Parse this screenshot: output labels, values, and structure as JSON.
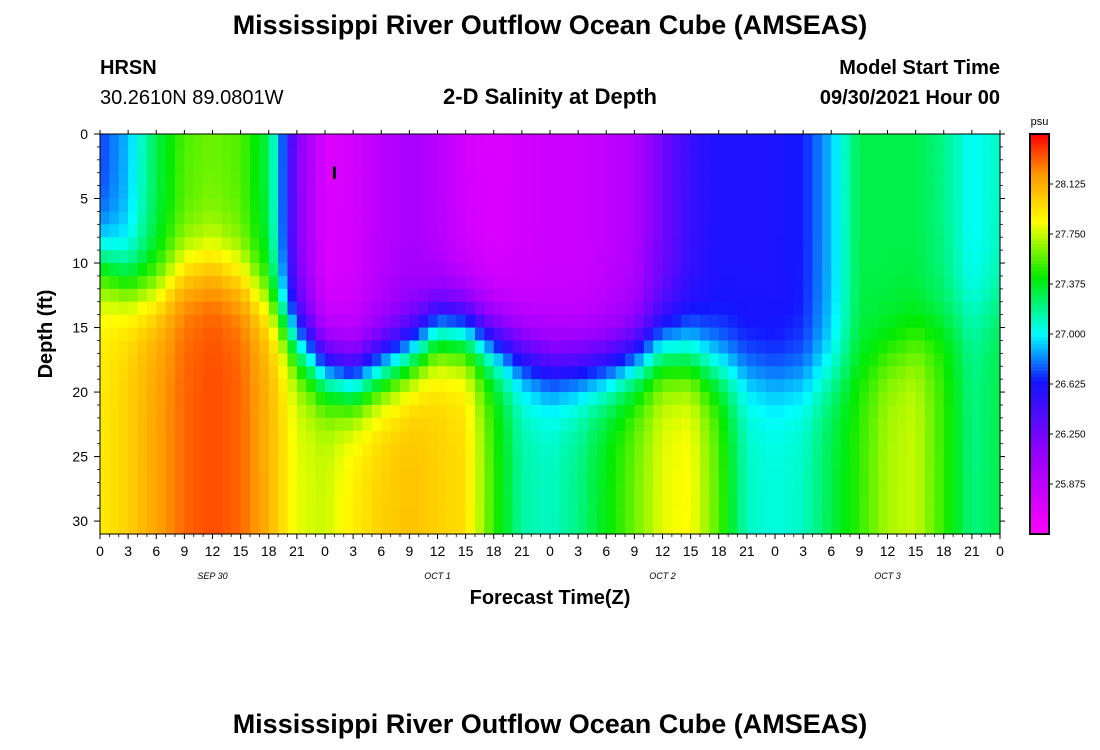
{
  "page": {
    "title_top": "Mississippi River Outflow Ocean Cube (AMSEAS)",
    "title_bottom": "Mississippi River Outflow Ocean Cube (AMSEAS)",
    "station": "HRSN",
    "coords": "30.2610N  89.0801W",
    "plot_title": "2-D Salinity at Depth",
    "model_label": "Model Start Time",
    "model_time": "09/30/2021 Hour 00"
  },
  "chart_data": {
    "type": "heatmap",
    "title": "2-D Salinity at Depth",
    "xlabel": "Forecast Time(Z)",
    "ylabel": "Depth (ft)",
    "xlim": [
      0,
      96
    ],
    "ylim": [
      0,
      31
    ],
    "y_inverted": true,
    "x_ticks": [
      0,
      3,
      6,
      9,
      12,
      15,
      18,
      21,
      24,
      27,
      30,
      33,
      36,
      39,
      42,
      45,
      48,
      51,
      54,
      57,
      60,
      63,
      66,
      69,
      72,
      75,
      78,
      81,
      84,
      87,
      90,
      93,
      96
    ],
    "x_tick_labels": [
      "0",
      "3",
      "6",
      "9",
      "12",
      "15",
      "18",
      "21",
      "0",
      "3",
      "6",
      "9",
      "12",
      "15",
      "18",
      "21",
      "0",
      "3",
      "6",
      "9",
      "12",
      "15",
      "18",
      "21",
      "0",
      "3",
      "6",
      "9",
      "12",
      "15",
      "18",
      "21",
      "0"
    ],
    "day_labels": [
      {
        "text": "SEP 30",
        "hour": 12
      },
      {
        "text": "OCT 1",
        "hour": 36
      },
      {
        "text": "OCT 2",
        "hour": 60
      },
      {
        "text": "OCT 3",
        "hour": 84
      }
    ],
    "y_ticks": [
      0,
      5,
      10,
      15,
      20,
      25,
      30
    ],
    "colorbar": {
      "unit": "psu",
      "min": 25.5,
      "max": 28.5,
      "tick_values": [
        25.875,
        26.25,
        26.625,
        27.0,
        27.375,
        27.75,
        28.125
      ],
      "tick_labels": [
        "25.875",
        "26.250",
        "26.625",
        "27.000",
        "27.375",
        "27.750",
        "28.125"
      ]
    },
    "depth_profile_hours": [
      0,
      3,
      6,
      9,
      12,
      15,
      18,
      21,
      24,
      27,
      30,
      33,
      36,
      39,
      42,
      45,
      48,
      51,
      54,
      57,
      60,
      63,
      66,
      69,
      72,
      75,
      78,
      81,
      84,
      87,
      90,
      93,
      96
    ],
    "halocline_depth_ft": [
      10,
      11.5,
      12,
      10.5,
      10,
      11,
      13,
      16,
      18,
      19,
      18,
      17,
      15,
      15,
      16,
      17,
      18,
      18,
      18,
      17.5,
      16.5,
      17,
      18,
      18.5,
      19,
      19,
      18.5,
      18,
      17,
      16,
      15,
      14,
      13
    ],
    "surface_salinity_psu": [
      26.7,
      26.9,
      27.3,
      27.55,
      27.6,
      27.55,
      27.3,
      26.2,
      25.7,
      25.75,
      25.9,
      26.0,
      25.9,
      25.75,
      25.7,
      25.75,
      25.8,
      25.8,
      25.85,
      25.95,
      26.25,
      26.5,
      26.6,
      26.6,
      26.6,
      26.65,
      26.9,
      27.3,
      27.3,
      27.3,
      27.2,
      27.0,
      27.1
    ],
    "bottom_salinity_psu": [
      27.9,
      28.0,
      28.15,
      28.3,
      28.35,
      28.3,
      28.1,
      27.8,
      27.75,
      27.9,
      28.0,
      28.05,
      28.0,
      27.95,
      27.5,
      27.15,
      27.1,
      27.2,
      27.4,
      27.6,
      27.8,
      27.85,
      27.55,
      27.1,
      27.05,
      27.1,
      27.3,
      27.5,
      27.7,
      27.75,
      27.5,
      27.2,
      27.3
    ],
    "marker": {
      "hour": 25,
      "depth_ft": 3
    }
  }
}
